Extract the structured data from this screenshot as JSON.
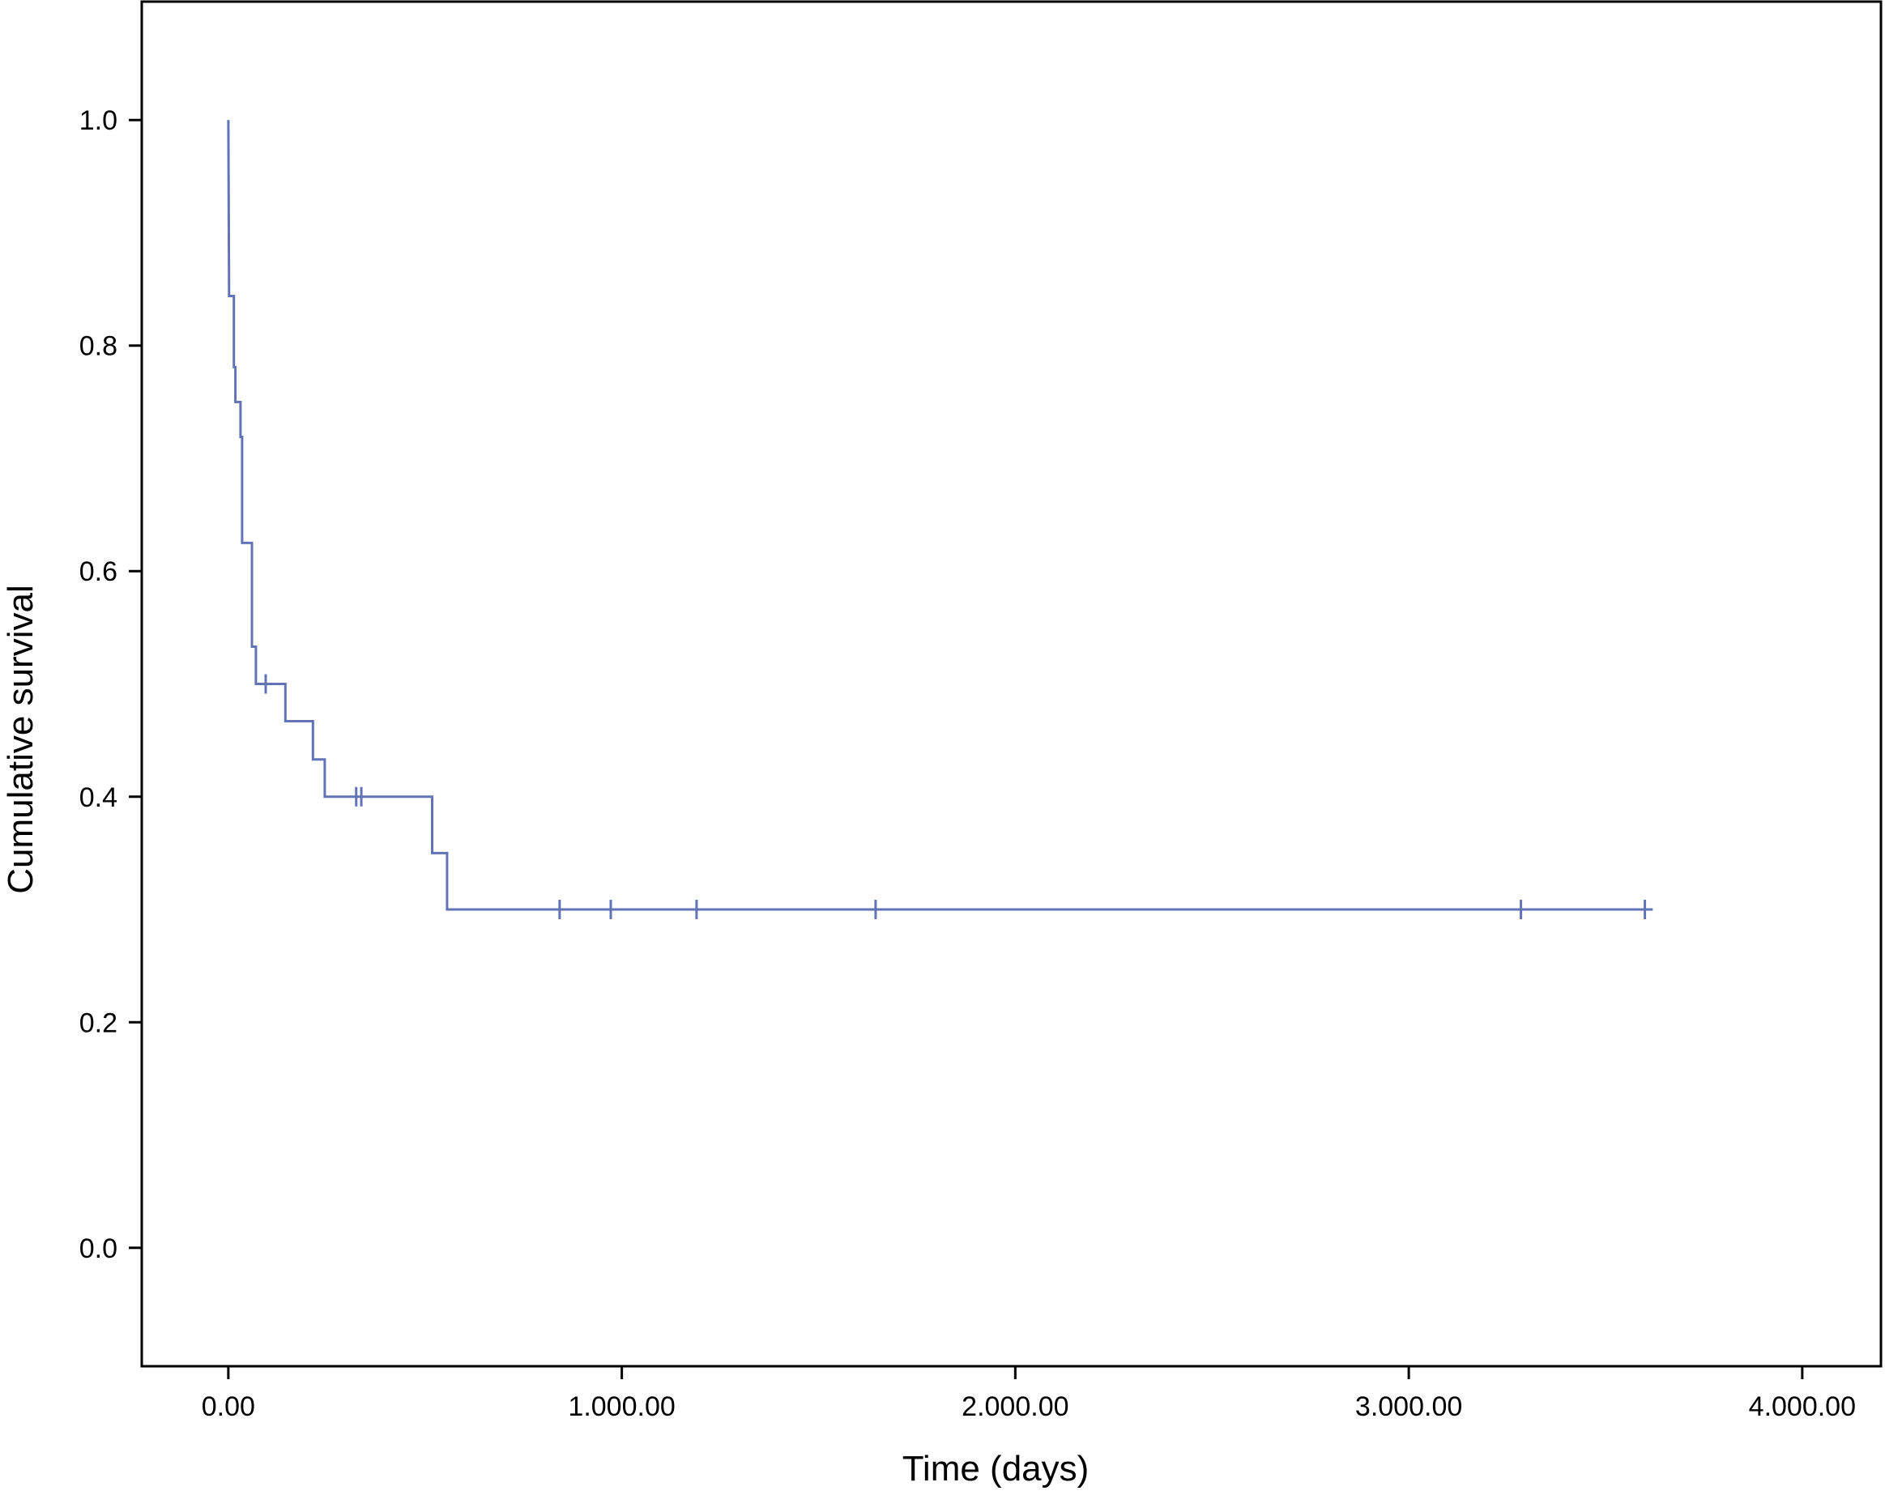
{
  "chart_data": {
    "type": "line",
    "title": "",
    "xlabel": "Time (days)",
    "ylabel": "Cumulative survival",
    "xlim": [
      -220,
      4200
    ],
    "ylim": [
      -0.105,
      1.105
    ],
    "xticks": [
      0,
      1000,
      2000,
      3000,
      4000
    ],
    "xtick_labels": [
      "0.00",
      "1.000.00",
      "2.000.00",
      "3.000.00",
      "4.000.00"
    ],
    "yticks": [
      0.0,
      0.2,
      0.4,
      0.6,
      0.8,
      1.0
    ],
    "ytick_labels": [
      "0.0",
      "0.2",
      "0.4",
      "0.6",
      "0.8",
      "1.0"
    ],
    "grid": false,
    "legend": "none",
    "colors": {
      "series": "#6273b6",
      "axes": "#000000"
    },
    "series": [
      {
        "step": [
          {
            "x": 0,
            "y": 1.0
          },
          {
            "x": 2,
            "y": 0.844
          },
          {
            "x": 14,
            "y": 0.844
          },
          {
            "x": 14,
            "y": 0.781
          },
          {
            "x": 18,
            "y": 0.781
          },
          {
            "x": 18,
            "y": 0.75
          },
          {
            "x": 31,
            "y": 0.75
          },
          {
            "x": 31,
            "y": 0.719
          },
          {
            "x": 35,
            "y": 0.719
          },
          {
            "x": 35,
            "y": 0.625
          },
          {
            "x": 60,
            "y": 0.625
          },
          {
            "x": 60,
            "y": 0.533
          },
          {
            "x": 70,
            "y": 0.533
          },
          {
            "x": 70,
            "y": 0.5
          },
          {
            "x": 145,
            "y": 0.5
          },
          {
            "x": 145,
            "y": 0.467
          },
          {
            "x": 215,
            "y": 0.467
          },
          {
            "x": 215,
            "y": 0.433
          },
          {
            "x": 245,
            "y": 0.433
          },
          {
            "x": 245,
            "y": 0.4
          },
          {
            "x": 518,
            "y": 0.4
          },
          {
            "x": 518,
            "y": 0.35
          },
          {
            "x": 556,
            "y": 0.35
          },
          {
            "x": 556,
            "y": 0.3
          },
          {
            "x": 3620,
            "y": 0.3
          }
        ],
        "censored": [
          {
            "x": 95,
            "y": 0.5
          },
          {
            "x": 325,
            "y": 0.4
          },
          {
            "x": 338,
            "y": 0.4
          },
          {
            "x": 842,
            "y": 0.3
          },
          {
            "x": 972,
            "y": 0.3
          },
          {
            "x": 1190,
            "y": 0.3
          },
          {
            "x": 1645,
            "y": 0.3
          },
          {
            "x": 3285,
            "y": 0.3
          },
          {
            "x": 3600,
            "y": 0.3
          }
        ]
      }
    ]
  }
}
